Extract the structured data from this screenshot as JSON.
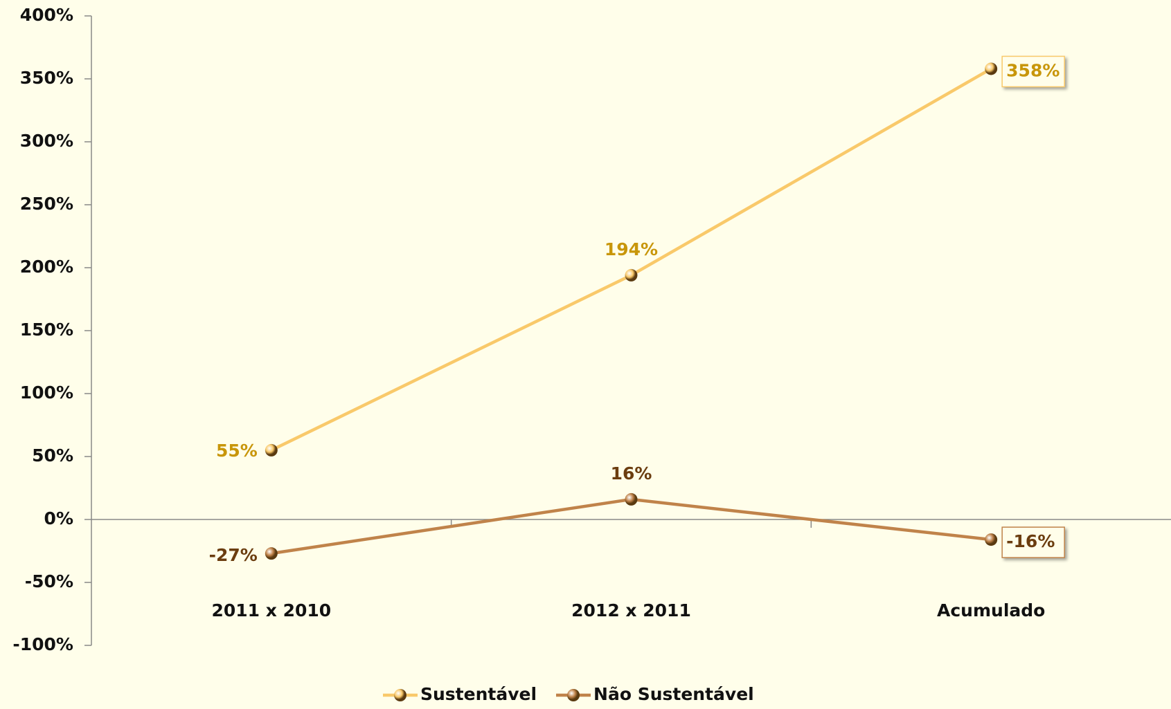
{
  "chart_data": {
    "type": "line",
    "categories": [
      "2011 x 2010",
      "2012 x 2011",
      "Acumulado"
    ],
    "series": [
      {
        "name": "Sustentável",
        "color": "#f9c96a",
        "label_color": "#c8960a",
        "values": [
          55,
          194,
          358
        ],
        "value_labels": [
          "55%",
          "194%",
          "358%"
        ]
      },
      {
        "name": "Não Sustentável",
        "color": "#c0834a",
        "label_color": "#6b3d0f",
        "values": [
          -27,
          16,
          -16
        ],
        "value_labels": [
          "-27%",
          "16%",
          "-16%"
        ]
      }
    ],
    "ylim": [
      -100,
      400
    ],
    "yticks": [
      {
        "value": -100,
        "label": "-100%"
      },
      {
        "value": -50,
        "label": "-50%"
      },
      {
        "value": 0,
        "label": "0%"
      },
      {
        "value": 50,
        "label": "50%"
      },
      {
        "value": 100,
        "label": "100%"
      },
      {
        "value": 150,
        "label": "150%"
      },
      {
        "value": 200,
        "label": "200%"
      },
      {
        "value": 250,
        "label": "250%"
      },
      {
        "value": 300,
        "label": "300%"
      },
      {
        "value": 350,
        "label": "350%"
      },
      {
        "value": 400,
        "label": "400%"
      }
    ],
    "legend": "bottom",
    "background": "#fffeea"
  }
}
